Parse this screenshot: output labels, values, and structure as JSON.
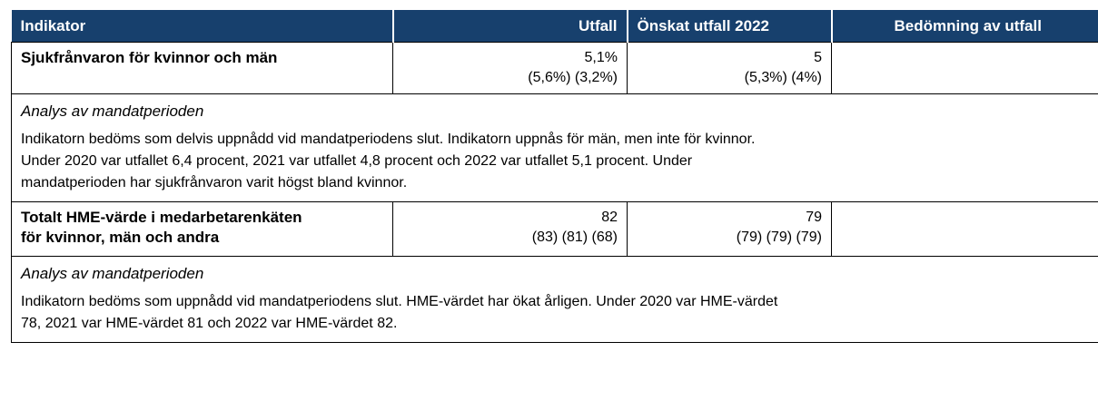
{
  "header": {
    "columns": [
      "Indikator",
      "Utfall",
      "Önskat utfall 2022",
      "Bedömning av utfall"
    ]
  },
  "rows": [
    {
      "indicator": [
        "Sjukfrånvaron för kvinnor och män"
      ],
      "outcome": [
        "5,1%",
        "(5,6%) (3,2%)"
      ],
      "target": [
        "5",
        "(5,3%) (4%)"
      ],
      "analysis_title": "Analys av mandatperioden",
      "analysis_text": [
        "Indikatorn bedöms som delvis uppnådd vid mandatperiodens slut. Indikatorn uppnås för män, men inte för kvinnor.",
        "Under 2020 var utfallet 6,4 procent, 2021 var utfallet 4,8 procent och 2022 var utfallet 5,1 procent. Under",
        "mandatperioden har sjukfrånvaron varit högst bland kvinnor."
      ]
    },
    {
      "indicator": [
        "Totalt HME-värde i medarbetarenkäten",
        "för kvinnor, män och andra"
      ],
      "outcome": [
        "82",
        "(83) (81) (68)"
      ],
      "target": [
        "79",
        "(79) (79) (79)"
      ],
      "analysis_title": "Analys av mandatperioden",
      "analysis_text": [
        "Indikatorn bedöms som uppnådd vid mandatperiodens slut. HME-värdet har ökat årligen. Under 2020 var HME-värdet",
        "78, 2021 var HME-värdet 81 och 2022 var HME-värdet 82."
      ]
    }
  ]
}
